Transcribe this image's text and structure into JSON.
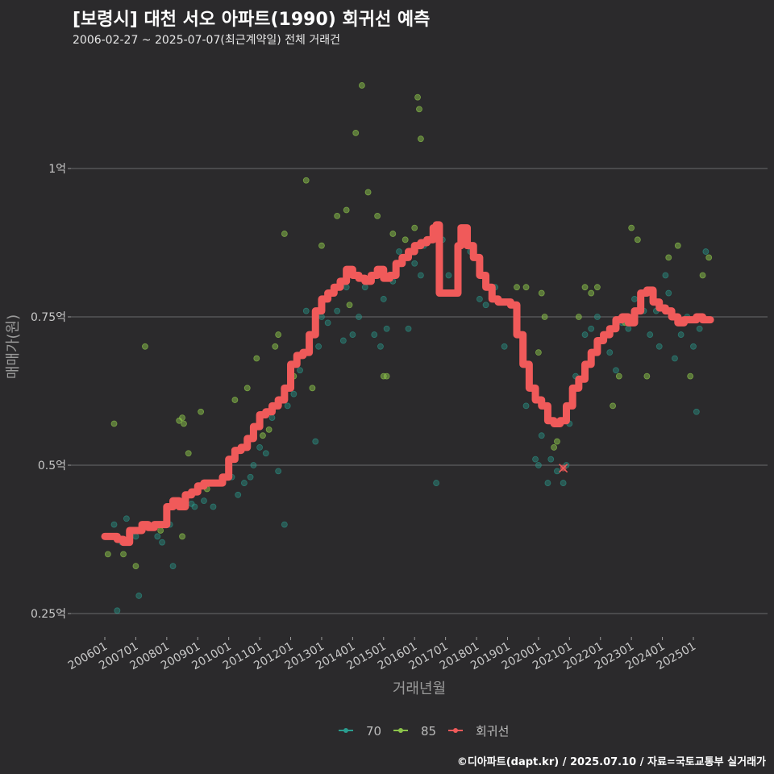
{
  "title": "[보령시] 대천 서오 아파트(1990) 회귀선 예측",
  "subtitle": "2006-02-27 ~ 2025-07-07(최근계약일) 전체 거래건",
  "caption": "©디아파트(dapt.kr) / 2025.07.10 / 자료=국토교통부 실거래가",
  "colors": {
    "s70": "#2a9d8f",
    "s85": "#8bc34a",
    "reg": "#f05a5a",
    "grid": "#5e5e60",
    "bg": "#2b2a2c"
  },
  "chart_data": {
    "type": "scatter",
    "title": "[보령시] 대천 서오 아파트(1990) 회귀선 예측",
    "xlabel": "거래년월",
    "ylabel": "매매가(원)",
    "xlim": [
      2005.75,
      2026.2
    ],
    "ylim": [
      0.2,
      1.2
    ],
    "y_ticks": [
      0.25,
      0.5,
      0.75,
      1.0
    ],
    "y_tick_labels": [
      "0.25억",
      "0.5억",
      "0.75억",
      "1억"
    ],
    "x_ticks": [
      2006,
      2007,
      2008,
      2009,
      2010,
      2011,
      2012,
      2013,
      2014,
      2015,
      2016,
      2017,
      2018,
      2019,
      2020,
      2021,
      2022,
      2023,
      2024,
      2025
    ],
    "x_tick_labels": [
      "200601",
      "200701",
      "200801",
      "200901",
      "201001",
      "201101",
      "201201",
      "201301",
      "201401",
      "201501",
      "201601",
      "201701",
      "201801",
      "201901",
      "202001",
      "202101",
      "202201",
      "202301",
      "202401",
      "202501"
    ],
    "grid": true,
    "legend": {
      "position": "bottom",
      "entries": [
        "70",
        "85",
        "회귀선"
      ]
    },
    "series": [
      {
        "name": "70",
        "type": "scatter",
        "points": [
          [
            2006.2,
            0.38
          ],
          [
            2006.3,
            0.4
          ],
          [
            2006.4,
            0.255
          ],
          [
            2006.55,
            0.37
          ],
          [
            2006.7,
            0.41
          ],
          [
            2006.8,
            0.37
          ],
          [
            2007.0,
            0.38
          ],
          [
            2007.1,
            0.28
          ],
          [
            2007.3,
            0.4
          ],
          [
            2007.7,
            0.38
          ],
          [
            2007.85,
            0.37
          ],
          [
            2008.0,
            0.4
          ],
          [
            2008.1,
            0.4
          ],
          [
            2008.2,
            0.33
          ],
          [
            2008.6,
            0.44
          ],
          [
            2008.8,
            0.435
          ],
          [
            2008.9,
            0.43
          ],
          [
            2009.2,
            0.44
          ],
          [
            2009.5,
            0.43
          ],
          [
            2009.6,
            0.47
          ],
          [
            2009.8,
            0.48
          ],
          [
            2010.1,
            0.48
          ],
          [
            2010.3,
            0.45
          ],
          [
            2010.5,
            0.47
          ],
          [
            2010.7,
            0.48
          ],
          [
            2010.8,
            0.5
          ],
          [
            2011.0,
            0.53
          ],
          [
            2011.2,
            0.52
          ],
          [
            2011.4,
            0.58
          ],
          [
            2011.6,
            0.49
          ],
          [
            2011.8,
            0.4
          ],
          [
            2011.9,
            0.6
          ],
          [
            2012.1,
            0.62
          ],
          [
            2012.3,
            0.66
          ],
          [
            2012.5,
            0.76
          ],
          [
            2012.8,
            0.54
          ],
          [
            2012.9,
            0.7
          ],
          [
            2013.0,
            0.75
          ],
          [
            2013.2,
            0.74
          ],
          [
            2013.5,
            0.76
          ],
          [
            2013.7,
            0.71
          ],
          [
            2013.8,
            0.8
          ],
          [
            2014.0,
            0.72
          ],
          [
            2014.2,
            0.75
          ],
          [
            2014.4,
            0.8
          ],
          [
            2014.7,
            0.72
          ],
          [
            2014.9,
            0.7
          ],
          [
            2015.0,
            0.78
          ],
          [
            2015.1,
            0.73
          ],
          [
            2015.3,
            0.81
          ],
          [
            2015.5,
            0.86
          ],
          [
            2015.8,
            0.73
          ],
          [
            2016.0,
            0.84
          ],
          [
            2016.2,
            0.82
          ],
          [
            2016.3,
            0.87
          ],
          [
            2016.5,
            0.88
          ],
          [
            2016.7,
            0.47
          ],
          [
            2016.9,
            0.88
          ],
          [
            2017.1,
            0.82
          ],
          [
            2017.4,
            0.79
          ],
          [
            2017.8,
            0.86
          ],
          [
            2018.1,
            0.78
          ],
          [
            2018.3,
            0.77
          ],
          [
            2018.6,
            0.8
          ],
          [
            2018.9,
            0.7
          ],
          [
            2019.3,
            0.74
          ],
          [
            2019.6,
            0.6
          ],
          [
            2019.9,
            0.51
          ],
          [
            2020.0,
            0.5
          ],
          [
            2020.1,
            0.55
          ],
          [
            2020.3,
            0.47
          ],
          [
            2020.4,
            0.51
          ],
          [
            2020.6,
            0.49
          ],
          [
            2020.8,
            0.47
          ],
          [
            2020.9,
            0.5
          ],
          [
            2021.0,
            0.57
          ],
          [
            2021.2,
            0.65
          ],
          [
            2021.5,
            0.72
          ],
          [
            2021.7,
            0.73
          ],
          [
            2021.9,
            0.75
          ],
          [
            2022.1,
            0.72
          ],
          [
            2022.3,
            0.69
          ],
          [
            2022.5,
            0.66
          ],
          [
            2022.7,
            0.74
          ],
          [
            2022.9,
            0.73
          ],
          [
            2023.1,
            0.78
          ],
          [
            2023.4,
            0.76
          ],
          [
            2023.6,
            0.72
          ],
          [
            2023.8,
            0.76
          ],
          [
            2023.9,
            0.7
          ],
          [
            2024.1,
            0.82
          ],
          [
            2024.2,
            0.79
          ],
          [
            2024.4,
            0.68
          ],
          [
            2024.6,
            0.72
          ],
          [
            2024.8,
            0.75
          ],
          [
            2025.0,
            0.7
          ],
          [
            2025.1,
            0.59
          ],
          [
            2025.2,
            0.73
          ],
          [
            2025.4,
            0.86
          ]
        ]
      },
      {
        "name": "85",
        "type": "scatter",
        "points": [
          [
            2006.1,
            0.35
          ],
          [
            2006.3,
            0.57
          ],
          [
            2006.6,
            0.35
          ],
          [
            2007.0,
            0.33
          ],
          [
            2007.3,
            0.7
          ],
          [
            2007.8,
            0.39
          ],
          [
            2008.4,
            0.575
          ],
          [
            2008.5,
            0.58
          ],
          [
            2008.55,
            0.57
          ],
          [
            2008.5,
            0.38
          ],
          [
            2008.7,
            0.52
          ],
          [
            2009.1,
            0.59
          ],
          [
            2009.3,
            0.46
          ],
          [
            2010.2,
            0.61
          ],
          [
            2010.6,
            0.63
          ],
          [
            2010.9,
            0.68
          ],
          [
            2011.1,
            0.55
          ],
          [
            2011.3,
            0.56
          ],
          [
            2011.5,
            0.7
          ],
          [
            2011.6,
            0.72
          ],
          [
            2011.8,
            0.89
          ],
          [
            2012.1,
            0.65
          ],
          [
            2012.5,
            0.98
          ],
          [
            2012.7,
            0.63
          ],
          [
            2013.0,
            0.87
          ],
          [
            2013.5,
            0.92
          ],
          [
            2013.8,
            0.93
          ],
          [
            2013.9,
            0.77
          ],
          [
            2014.1,
            1.06
          ],
          [
            2014.3,
            1.14
          ],
          [
            2014.5,
            0.96
          ],
          [
            2014.8,
            0.92
          ],
          [
            2015.0,
            0.65
          ],
          [
            2015.1,
            0.65
          ],
          [
            2015.3,
            0.89
          ],
          [
            2015.7,
            0.88
          ],
          [
            2016.0,
            0.9
          ],
          [
            2016.1,
            1.12
          ],
          [
            2016.15,
            1.1
          ],
          [
            2016.2,
            1.05
          ],
          [
            2019.3,
            0.8
          ],
          [
            2019.6,
            0.8
          ],
          [
            2020.0,
            0.69
          ],
          [
            2020.1,
            0.79
          ],
          [
            2020.2,
            0.75
          ],
          [
            2020.5,
            0.53
          ],
          [
            2020.6,
            0.54
          ],
          [
            2021.3,
            0.75
          ],
          [
            2021.5,
            0.8
          ],
          [
            2021.7,
            0.79
          ],
          [
            2021.9,
            0.8
          ],
          [
            2022.4,
            0.6
          ],
          [
            2022.6,
            0.65
          ],
          [
            2022.8,
            0.74
          ],
          [
            2023.0,
            0.9
          ],
          [
            2023.2,
            0.88
          ],
          [
            2023.5,
            0.65
          ],
          [
            2024.2,
            0.85
          ],
          [
            2024.5,
            0.87
          ],
          [
            2024.9,
            0.65
          ],
          [
            2025.3,
            0.82
          ],
          [
            2025.5,
            0.85
          ]
        ]
      },
      {
        "name": "회귀선",
        "type": "line",
        "points": [
          [
            2006.0,
            0.38
          ],
          [
            2006.2,
            0.38
          ],
          [
            2006.4,
            0.375
          ],
          [
            2006.6,
            0.37
          ],
          [
            2006.8,
            0.39
          ],
          [
            2007.0,
            0.39
          ],
          [
            2007.2,
            0.4
          ],
          [
            2007.4,
            0.395
          ],
          [
            2007.6,
            0.4
          ],
          [
            2007.8,
            0.4
          ],
          [
            2008.0,
            0.43
          ],
          [
            2008.2,
            0.44
          ],
          [
            2008.4,
            0.43
          ],
          [
            2008.6,
            0.45
          ],
          [
            2008.8,
            0.455
          ],
          [
            2009.0,
            0.465
          ],
          [
            2009.2,
            0.47
          ],
          [
            2009.4,
            0.47
          ],
          [
            2009.6,
            0.47
          ],
          [
            2009.8,
            0.48
          ],
          [
            2010.0,
            0.51
          ],
          [
            2010.2,
            0.525
          ],
          [
            2010.4,
            0.53
          ],
          [
            2010.6,
            0.545
          ],
          [
            2010.8,
            0.565
          ],
          [
            2011.0,
            0.585
          ],
          [
            2011.2,
            0.59
          ],
          [
            2011.4,
            0.6
          ],
          [
            2011.6,
            0.61
          ],
          [
            2011.8,
            0.63
          ],
          [
            2012.0,
            0.67
          ],
          [
            2012.2,
            0.685
          ],
          [
            2012.4,
            0.69
          ],
          [
            2012.6,
            0.72
          ],
          [
            2012.8,
            0.76
          ],
          [
            2013.0,
            0.78
          ],
          [
            2013.2,
            0.79
          ],
          [
            2013.4,
            0.8
          ],
          [
            2013.6,
            0.81
          ],
          [
            2013.8,
            0.83
          ],
          [
            2014.0,
            0.82
          ],
          [
            2014.2,
            0.815
          ],
          [
            2014.4,
            0.81
          ],
          [
            2014.6,
            0.82
          ],
          [
            2014.8,
            0.83
          ],
          [
            2015.0,
            0.815
          ],
          [
            2015.2,
            0.82
          ],
          [
            2015.4,
            0.84
          ],
          [
            2015.6,
            0.85
          ],
          [
            2015.8,
            0.86
          ],
          [
            2016.0,
            0.87
          ],
          [
            2016.2,
            0.875
          ],
          [
            2016.4,
            0.88
          ],
          [
            2016.6,
            0.9
          ],
          [
            2016.7,
            0.905
          ],
          [
            2016.8,
            0.79
          ],
          [
            2017.0,
            0.79
          ],
          [
            2017.2,
            0.79
          ],
          [
            2017.4,
            0.87
          ],
          [
            2017.5,
            0.9
          ],
          [
            2017.7,
            0.87
          ],
          [
            2017.9,
            0.85
          ],
          [
            2018.1,
            0.82
          ],
          [
            2018.3,
            0.8
          ],
          [
            2018.5,
            0.78
          ],
          [
            2018.7,
            0.775
          ],
          [
            2018.9,
            0.775
          ],
          [
            2019.1,
            0.77
          ],
          [
            2019.3,
            0.72
          ],
          [
            2019.5,
            0.67
          ],
          [
            2019.7,
            0.63
          ],
          [
            2019.9,
            0.61
          ],
          [
            2020.1,
            0.6
          ],
          [
            2020.3,
            0.575
          ],
          [
            2020.5,
            0.57
          ],
          [
            2020.7,
            0.575
          ],
          [
            2020.9,
            0.6
          ],
          [
            2021.1,
            0.63
          ],
          [
            2021.3,
            0.645
          ],
          [
            2021.5,
            0.67
          ],
          [
            2021.7,
            0.69
          ],
          [
            2021.9,
            0.71
          ],
          [
            2022.1,
            0.72
          ],
          [
            2022.3,
            0.73
          ],
          [
            2022.5,
            0.745
          ],
          [
            2022.7,
            0.75
          ],
          [
            2022.9,
            0.74
          ],
          [
            2023.1,
            0.76
          ],
          [
            2023.3,
            0.79
          ],
          [
            2023.5,
            0.795
          ],
          [
            2023.7,
            0.775
          ],
          [
            2023.9,
            0.765
          ],
          [
            2024.1,
            0.76
          ],
          [
            2024.3,
            0.75
          ],
          [
            2024.5,
            0.74
          ],
          [
            2024.7,
            0.745
          ],
          [
            2024.9,
            0.745
          ],
          [
            2025.1,
            0.75
          ],
          [
            2025.3,
            0.745
          ],
          [
            2025.55,
            0.745
          ]
        ]
      }
    ],
    "marker": {
      "x": 2020.8,
      "y": 0.495,
      "symbol": "x"
    }
  }
}
